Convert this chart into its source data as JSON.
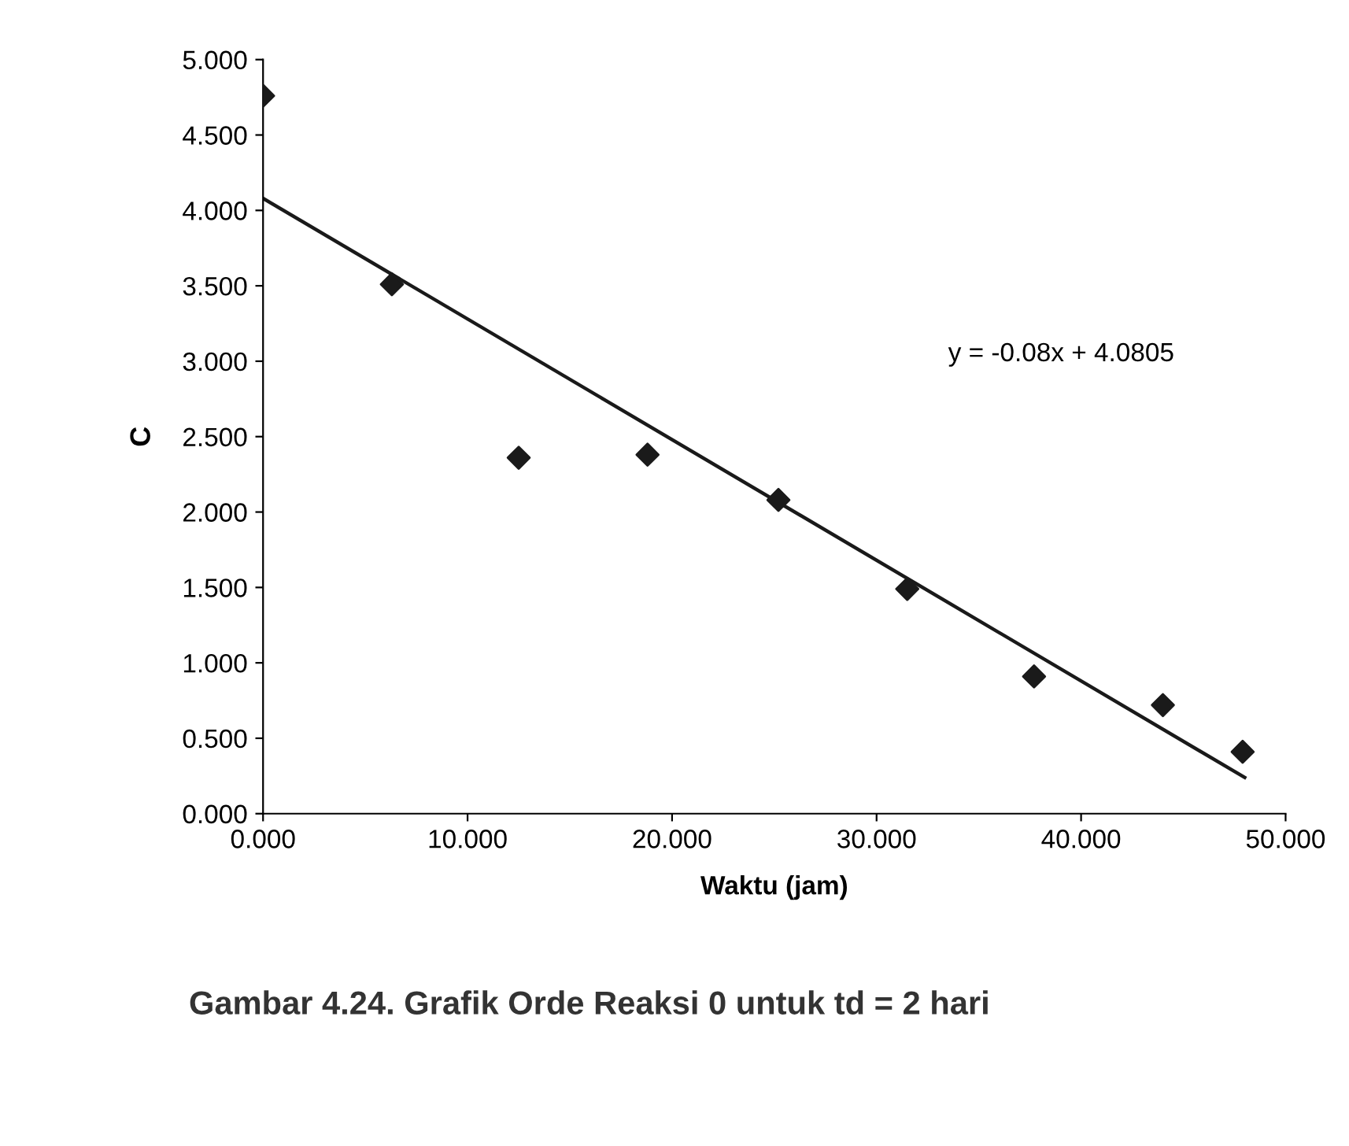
{
  "chart_data": {
    "type": "scatter",
    "xlabel": "Waktu (jam)",
    "ylabel": "C",
    "series": [
      {
        "color": "#1a1a1a",
        "marker": "diamond",
        "x": [
          0,
          6.3,
          12.5,
          18.8,
          25.2,
          31.5,
          37.7,
          44.0,
          47.9
        ],
        "values": [
          4.76,
          3.51,
          2.36,
          2.38,
          2.08,
          1.49,
          0.91,
          0.72,
          0.41
        ]
      },
      {
        "type": "line",
        "color": "#1a1a1a",
        "marker": "none",
        "line_style": "solid",
        "x": [
          0,
          48
        ],
        "values": [
          4.08,
          0.24
        ]
      }
    ],
    "xlim": [
      0,
      50
    ],
    "ylim": [
      0,
      5
    ],
    "xticks": [
      {
        "value": 0,
        "label": "0.000"
      },
      {
        "value": 10,
        "label": "10.000"
      },
      {
        "value": 20,
        "label": "20.000"
      },
      {
        "value": 30,
        "label": "30.000"
      },
      {
        "value": 40,
        "label": "40.000"
      },
      {
        "value": 50,
        "label": "50.000"
      }
    ],
    "yticks": [
      {
        "value": 0,
        "label": "0.000"
      },
      {
        "value": 0.5,
        "label": "0.500"
      },
      {
        "value": 1,
        "label": "1.000"
      },
      {
        "value": 1.5,
        "label": "1.500"
      },
      {
        "value": 2,
        "label": "2.000"
      },
      {
        "value": 2.5,
        "label": "2.500"
      },
      {
        "value": 3,
        "label": "3.000"
      },
      {
        "value": 3.5,
        "label": "3.500"
      },
      {
        "value": 4,
        "label": "4.000"
      },
      {
        "value": 4.5,
        "label": "4.500"
      },
      {
        "value": 5,
        "label": "5.000"
      }
    ],
    "grid": false,
    "legend": false,
    "annotations": [
      "y = -0.08x + 4.0805",
      "Gambar 4.24. Grafik Orde Reaksi 0 untuk td = 2 hari"
    ]
  }
}
